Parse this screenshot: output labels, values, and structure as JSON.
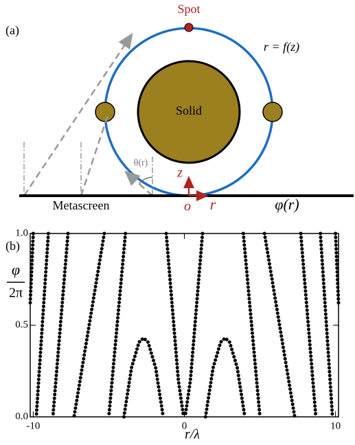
{
  "diagram": {
    "panel_label": "(a)",
    "spot": "Spot",
    "curve_label": "r = f(z)",
    "solid": "Solid",
    "angle": "θ(r)",
    "z_axis": "z",
    "origin": "o",
    "r_axis": "r",
    "metascreen": "Metascreen",
    "phase": "φ(r)"
  },
  "chart_data": {
    "type": "segments",
    "panel_label": "(b)",
    "xlabel": "r/λ",
    "ylabel_numerator": "φ",
    "ylabel_denominator": "2π",
    "color": "#000000",
    "xlim": [
      -10.2,
      10.2
    ],
    "ylim": [
      0,
      1
    ],
    "xticks": [
      -10,
      0,
      10
    ],
    "yticks": [
      {
        "value": 0,
        "label": "0.0"
      },
      {
        "value": 0.5,
        "label": "0.5"
      },
      {
        "value": 1,
        "label": "1.0"
      }
    ],
    "segments": [
      {
        "x": [
          -10.0,
          -10.2
        ],
        "y": [
          1,
          0.62
        ]
      },
      {
        "x": [
          -9.0,
          -9.8
        ],
        "y": [
          1,
          0
        ]
      },
      {
        "x": [
          -7.7,
          -8.7
        ],
        "y": [
          1,
          0
        ]
      },
      {
        "x": [
          -5.3,
          -7.3
        ],
        "y": [
          1,
          0
        ]
      },
      {
        "x": [
          -3.9,
          -5.0
        ],
        "y": [
          1,
          0
        ]
      },
      {
        "x": [
          -4.0,
          -3.5,
          -3.0,
          -2.7,
          -2.4,
          -1.9,
          -1.4
        ],
        "y": [
          0,
          0.267,
          0.407,
          0.43,
          0.407,
          0.267,
          0
        ]
      },
      {
        "x": [
          -1.2,
          -0.8,
          -0.4,
          -0.05
        ],
        "y": [
          1,
          0.6,
          0.2,
          0
        ]
      },
      {
        "x": [
          1.2,
          0.8,
          0.4,
          0.05
        ],
        "y": [
          1,
          0.6,
          0.2,
          0
        ]
      },
      {
        "x": [
          1.4,
          1.9,
          2.4,
          2.7,
          3.0,
          3.5,
          4.0
        ],
        "y": [
          0,
          0.267,
          0.407,
          0.43,
          0.407,
          0.267,
          0
        ]
      },
      {
        "x": [
          3.9,
          5.0
        ],
        "y": [
          1,
          0
        ]
      },
      {
        "x": [
          5.3,
          7.3
        ],
        "y": [
          1,
          0
        ]
      },
      {
        "x": [
          7.7,
          8.7
        ],
        "y": [
          1,
          0
        ]
      },
      {
        "x": [
          9.0,
          9.8
        ],
        "y": [
          1,
          0
        ]
      },
      {
        "x": [
          10.0,
          10.2
        ],
        "y": [
          1,
          0.62
        ]
      }
    ]
  }
}
